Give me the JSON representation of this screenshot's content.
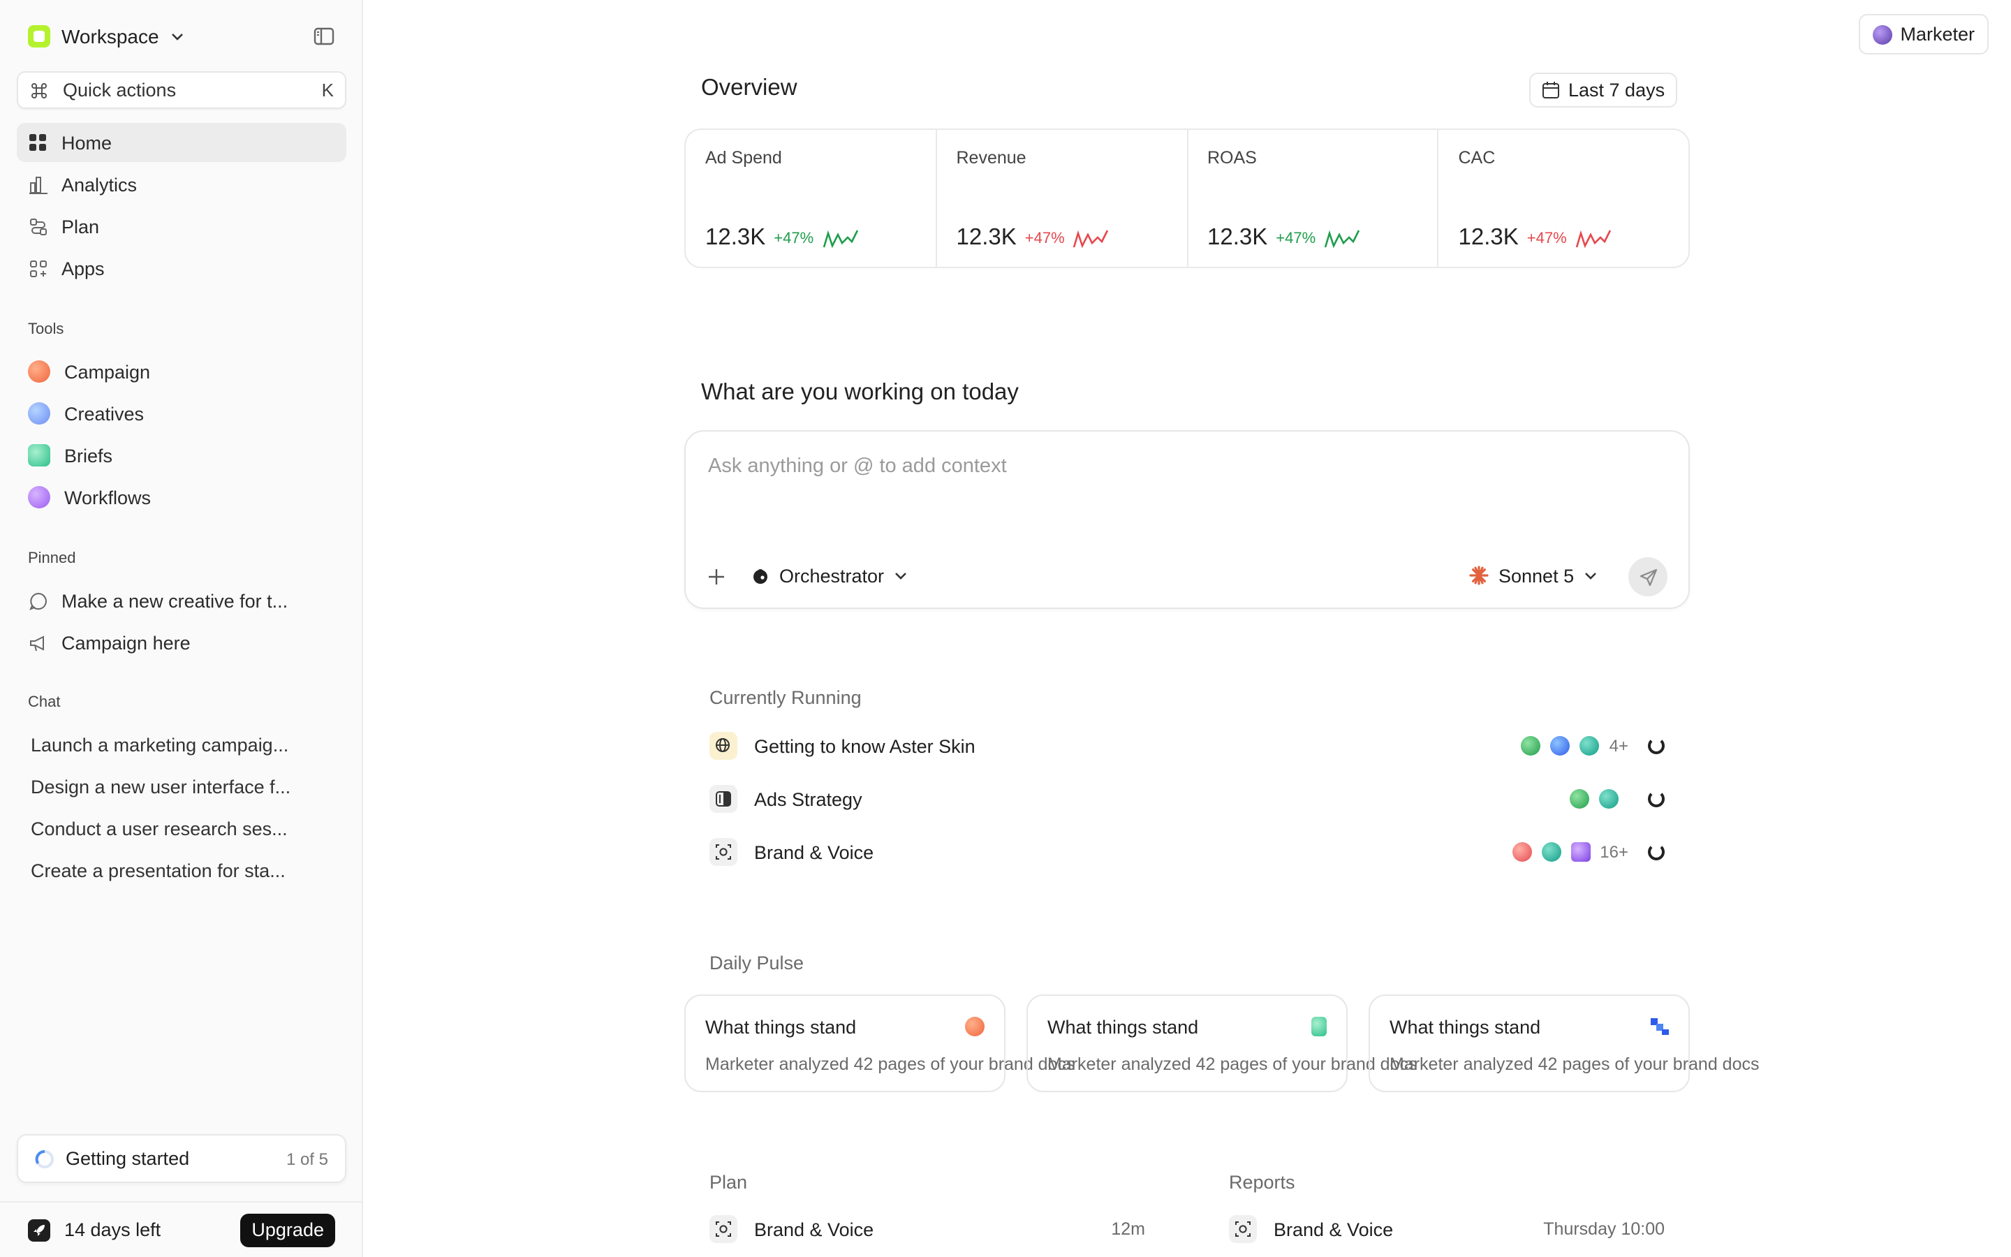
{
  "sidebar": {
    "workspace": "Workspace",
    "quick_actions": {
      "label": "Quick actions",
      "shortcut": "K"
    },
    "nav": [
      {
        "label": "Home",
        "icon": "grid-icon",
        "active": true
      },
      {
        "label": "Analytics",
        "icon": "chart-icon"
      },
      {
        "label": "Plan",
        "icon": "plan-icon"
      },
      {
        "label": "Apps",
        "icon": "apps-icon"
      }
    ],
    "tools_title": "Tools",
    "tools": [
      {
        "label": "Campaign",
        "color": "#f0643c"
      },
      {
        "label": "Creatives",
        "color": "#6c8cf5"
      },
      {
        "label": "Briefs",
        "color": "#2cbf8a"
      },
      {
        "label": "Workflows",
        "color": "#9a5cf0"
      }
    ],
    "pinned_title": "Pinned",
    "pinned": [
      {
        "label": "Make a new creative for t...",
        "icon": "chat-bubble-icon"
      },
      {
        "label": "Campaign here",
        "icon": "megaphone-icon"
      }
    ],
    "chat_title": "Chat",
    "chats": [
      "Launch a marketing campaig...",
      "Design a new user interface f...",
      "Conduct a user research ses...",
      "Create a presentation for sta..."
    ],
    "getting_started": {
      "label": "Getting started",
      "count": "1 of 5"
    },
    "trial": {
      "label": "14 days left",
      "button": "Upgrade"
    }
  },
  "header": {
    "role": "Marketer"
  },
  "overview": {
    "title": "Overview",
    "range": "Last 7 days",
    "metrics": [
      {
        "label": "Ad Spend",
        "value": "12.3K",
        "change": "+47%",
        "trend_color": "#1f9d4c"
      },
      {
        "label": "Revenue",
        "value": "12.3K",
        "change": "+47%",
        "trend_color": "#e5484d"
      },
      {
        "label": "ROAS",
        "value": "12.3K",
        "change": "+47%",
        "trend_color": "#1f9d4c"
      },
      {
        "label": "CAC",
        "value": "12.3K",
        "change": "+47%",
        "trend_color": "#e5484d"
      }
    ]
  },
  "prompt": {
    "title": "What are you working on today",
    "placeholder": "Ask anything or @ to add context",
    "agent": "Orchestrator",
    "model": "Sonnet 5"
  },
  "running": {
    "title": "Currently Running",
    "items": [
      {
        "label": "Getting to know Aster Skin",
        "more": "4+"
      },
      {
        "label": "Ads Strategy",
        "more": ""
      },
      {
        "label": "Brand & Voice",
        "more": "16+"
      }
    ]
  },
  "pulse": {
    "title": "Daily Pulse",
    "cards": [
      {
        "title": "What things stand",
        "desc": "Marketer analyzed 42 pages of your brand docs",
        "icon_color": "#f0643c"
      },
      {
        "title": "What things stand",
        "desc": "Marketer analyzed 42 pages of your brand docs",
        "icon_color": "#2cbf8a"
      },
      {
        "title": "What things stand",
        "desc": "Marketer analyzed 42 pages of your brand docs",
        "icon_color": "#2f5bea"
      }
    ]
  },
  "plan": {
    "title": "Plan",
    "item": "Brand & Voice",
    "time": "12m"
  },
  "reports": {
    "title": "Reports",
    "item": "Brand & Voice",
    "time": "Thursday 10:00"
  }
}
